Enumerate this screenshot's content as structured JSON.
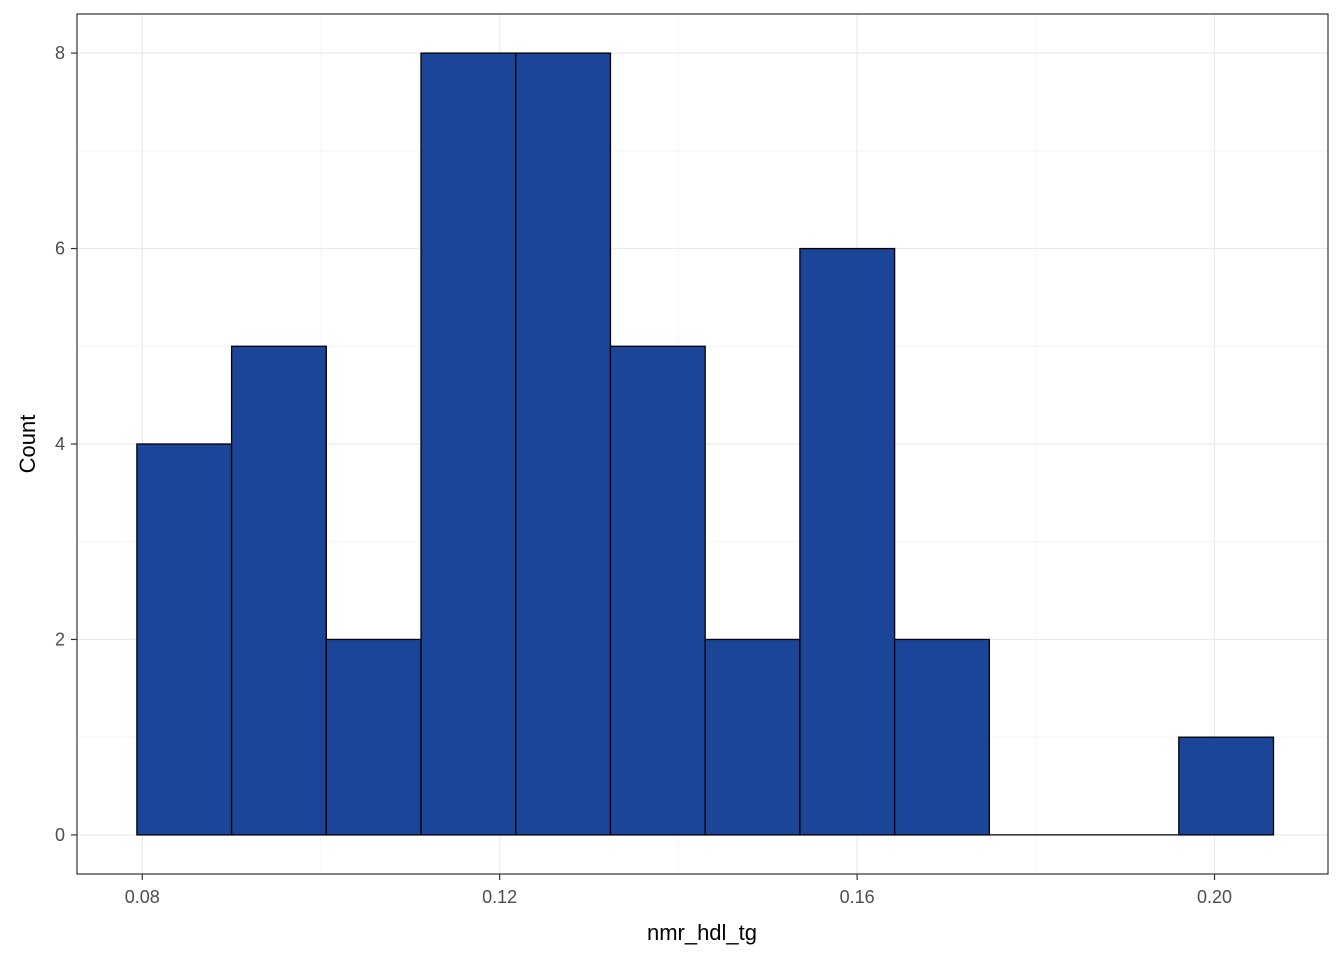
{
  "chart_data": {
    "type": "bar",
    "subtype": "histogram",
    "xlabel": "nmr_hdl_tg",
    "ylabel": "Count",
    "xlim": [
      0.0727,
      0.2127
    ],
    "ylim": [
      -0.4,
      8.4
    ],
    "x_ticks": [
      {
        "value": 0.08,
        "label": "0.08"
      },
      {
        "value": 0.12,
        "label": "0.12"
      },
      {
        "value": 0.16,
        "label": "0.16"
      },
      {
        "value": 0.2,
        "label": "0.20"
      }
    ],
    "y_ticks": [
      {
        "value": 0,
        "label": "0"
      },
      {
        "value": 2,
        "label": "2"
      },
      {
        "value": 4,
        "label": "4"
      },
      {
        "value": 6,
        "label": "6"
      },
      {
        "value": 8,
        "label": "8"
      }
    ],
    "bins": [
      {
        "x0": 0.0794,
        "x1": 0.09,
        "count": 4
      },
      {
        "x0": 0.09,
        "x1": 0.1006,
        "count": 5
      },
      {
        "x0": 0.1006,
        "x1": 0.1112,
        "count": 2
      },
      {
        "x0": 0.1112,
        "x1": 0.1218,
        "count": 8
      },
      {
        "x0": 0.1218,
        "x1": 0.1324,
        "count": 8
      },
      {
        "x0": 0.1324,
        "x1": 0.143,
        "count": 5
      },
      {
        "x0": 0.143,
        "x1": 0.1536,
        "count": 2
      },
      {
        "x0": 0.1536,
        "x1": 0.1642,
        "count": 6
      },
      {
        "x0": 0.1642,
        "x1": 0.1748,
        "count": 2
      },
      {
        "x0": 0.1748,
        "x1": 0.1854,
        "count": 0
      },
      {
        "x0": 0.1854,
        "x1": 0.196,
        "count": 0
      },
      {
        "x0": 0.196,
        "x1": 0.2066,
        "count": 1
      }
    ],
    "grid": true,
    "colors": {
      "bar_fill": "#1A4599",
      "bar_stroke": "#000000",
      "grid_major": "#EBEBEB",
      "grid_minor": "#F5F5F5",
      "panel_border": "#333333",
      "tick_text": "#4D4D4D"
    }
  }
}
